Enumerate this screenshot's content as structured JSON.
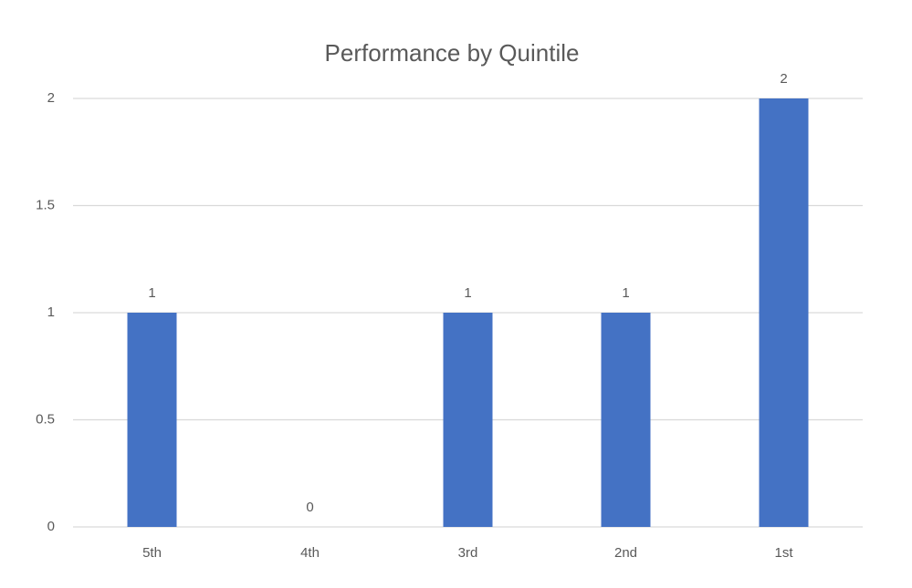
{
  "chart_data": {
    "type": "bar",
    "title": "Performance by Quintile",
    "categories": [
      "5th",
      "4th",
      "3rd",
      "2nd",
      "1st"
    ],
    "values": [
      1,
      0,
      1,
      1,
      2
    ],
    "color": "#4472c4",
    "ylim": [
      0,
      2
    ],
    "yticks": [
      0,
      0.5,
      1,
      1.5,
      2
    ],
    "grid": true
  }
}
